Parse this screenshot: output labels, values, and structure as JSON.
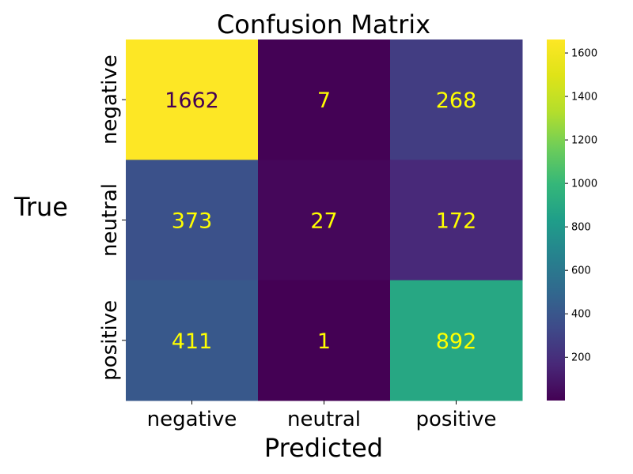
{
  "chart_data": {
    "type": "heatmap",
    "title": "Confusion Matrix",
    "xlabel": "Predicted",
    "ylabel": "True",
    "x_categories": [
      "negative",
      "neutral",
      "positive"
    ],
    "y_categories": [
      "negative",
      "neutral",
      "positive"
    ],
    "values": [
      [
        1662,
        7,
        268
      ],
      [
        373,
        27,
        172
      ],
      [
        411,
        1,
        892
      ]
    ],
    "colormap": "viridis",
    "color_range": [
      1,
      1662
    ],
    "colorbar_ticks": [
      200,
      400,
      600,
      800,
      1000,
      1200,
      1400,
      1600
    ],
    "annotation_color": "#ffff00",
    "annotation_color_high": "#440154"
  }
}
